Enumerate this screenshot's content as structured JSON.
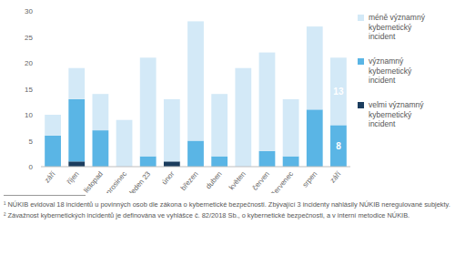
{
  "chart_data": {
    "type": "bar",
    "stacked": true,
    "grid": false,
    "legend": "right",
    "categories": [
      "září",
      "říjen",
      "listopad",
      "prosinec",
      "leden 23",
      "únor",
      "březen",
      "duben",
      "květen",
      "červen",
      "červenec",
      "srpen",
      "září"
    ],
    "ylim": [
      0,
      30
    ],
    "yticks": [
      0,
      5,
      10,
      15,
      20,
      25,
      30
    ],
    "series": [
      {
        "name": "méně významný kybernetický incident",
        "color": "#d3e9f7",
        "values": [
          4,
          6,
          7,
          9,
          19,
          12,
          23,
          12,
          19,
          19,
          11,
          16,
          13
        ],
        "value_labels": [
          null,
          null,
          null,
          null,
          null,
          null,
          null,
          null,
          null,
          null,
          null,
          null,
          "13"
        ]
      },
      {
        "name": "významný kybernetický incident",
        "color": "#5ab5e5",
        "values": [
          6,
          12,
          7,
          0,
          2,
          0,
          5,
          2,
          0,
          3,
          2,
          11,
          8
        ],
        "value_labels": [
          null,
          null,
          null,
          null,
          null,
          null,
          null,
          null,
          null,
          null,
          null,
          null,
          "8"
        ]
      },
      {
        "name": "velmi významný kybernetický incident",
        "color": "#1b3d5e",
        "values": [
          0,
          1,
          0,
          0,
          0,
          1,
          0,
          0,
          0,
          0,
          0,
          0,
          0
        ]
      }
    ],
    "annotations": [
      "¹ NÚKIB evidoval 18 incidentů u povinných osob dle zákona o kybernetické bezpečnosti. Zbývající 3 incidenty nahlásily NÚKIB neregulované subjekty.",
      "² Závažnost kybernetických incidentů je definována ve vyhlášce č. 82/2018 Sb., o kybernetické bezpečnosti, a v interní metodice NÚKIB."
    ]
  }
}
